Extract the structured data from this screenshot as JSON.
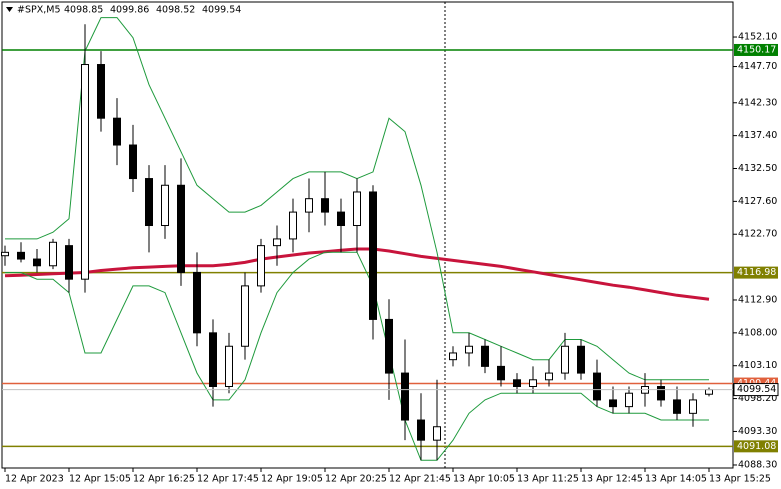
{
  "chart_data": {
    "type": "candlestick",
    "title": "#SPX,M5",
    "open": [
      4119.5,
      4120,
      4119,
      4118,
      4121,
      4116,
      4148,
      4140,
      4136,
      4131,
      4124,
      4130,
      4117,
      4108,
      4100,
      4106,
      4115,
      4121,
      4122,
      4126,
      4128,
      4126,
      4124,
      4129,
      4110,
      4102,
      4095,
      4092,
      4104,
      4105,
      4106,
      4103,
      4101,
      4100,
      4101,
      4102,
      4106,
      4102,
      4098,
      4097,
      4099,
      4100,
      4098,
      4096,
      4098.85
    ],
    "high": [
      4121,
      4121.5,
      4120.5,
      4122,
      4122,
      4154,
      4150,
      4143,
      4139,
      4133,
      4133,
      4134,
      4120,
      4110,
      4108,
      4117,
      4122,
      4124,
      4128,
      4131,
      4132,
      4128,
      4131,
      4130,
      4113,
      4107,
      4099,
      4101,
      4106,
      4108,
      4107,
      4106,
      4102,
      4103,
      4104,
      4108,
      4107,
      4104,
      4100,
      4100,
      4102,
      4101,
      4100,
      4099,
      4099.86
    ],
    "low": [
      4118,
      4118.5,
      4117,
      4117.5,
      4114,
      4114,
      4138,
      4133,
      4129,
      4120,
      4122,
      4115,
      4106,
      4097,
      4099,
      4104,
      4114,
      4118,
      4120,
      4123,
      4124,
      4120,
      4120,
      4107,
      4098,
      4092,
      4089,
      4089,
      4103,
      4103,
      4102,
      4100,
      4099,
      4099,
      4100,
      4101,
      4101,
      4097,
      4096,
      4096,
      4097,
      4097,
      4095,
      4094,
      4098.52
    ],
    "close": [
      4120,
      4119,
      4118,
      4121.5,
      4116,
      4148,
      4140,
      4136,
      4131,
      4124,
      4130,
      4117,
      4108,
      4100,
      4106,
      4115,
      4121,
      4122,
      4126,
      4128,
      4126,
      4124,
      4129,
      4110,
      4102,
      4095,
      4092,
      4094,
      4105,
      4106,
      4103,
      4101,
      4100,
      4101,
      4102,
      4106,
      4102,
      4098,
      4097,
      4099,
      4100,
      4098,
      4096,
      4098,
      4099.54
    ],
    "lines": [
      {
        "color": "#c8143c",
        "values": [
          4116.5,
          4116.6,
          4116.7,
          4116.8,
          4116.9,
          4117,
          4117.3,
          4117.5,
          4117.7,
          4117.8,
          4117.9,
          4118,
          4118,
          4118,
          4118.2,
          4118.5,
          4119,
          4119.3,
          4119.6,
          4119.9,
          4120.1,
          4120.3,
          4120.5,
          4120.5,
          4120.2,
          4119.8,
          4119.4,
          4119.1,
          4118.8,
          4118.5,
          4118.2,
          4117.9,
          4117.5,
          4117.1,
          4116.7,
          4116.3,
          4115.9,
          4115.5,
          4115.1,
          4114.8,
          4114.4,
          4114,
          4113.6,
          4113.3,
          4113
        ]
      },
      {
        "color": "#1e9a3c",
        "values": [
          4122,
          4122,
          4122,
          4123,
          4125,
          4150,
          4155,
          4155,
          4152,
          4145,
          4140,
          4135,
          4130,
          4128,
          4126,
          4126,
          4127,
          4129,
          4131,
          4132,
          4132,
          4132,
          4131,
          4132,
          4140,
          4138,
          4130,
          4120,
          4108,
          4108,
          4107,
          4106,
          4105,
          4104,
          4104,
          4107,
          4107,
          4106,
          4104,
          4102,
          4101,
          4101,
          4101,
          4101,
          4101
        ]
      },
      {
        "color": "#1e9a3c",
        "values": [
          4117,
          4117,
          4116,
          4116,
          4114,
          4105,
          4105,
          4110,
          4115,
          4115,
          4114,
          4108,
          4102,
          4098,
          4098,
          4101,
          4108,
          4114,
          4117,
          4119,
          4120,
          4120,
          4120,
          4115,
          4105,
          4095,
          4089,
          4089,
          4092,
          4096,
          4098,
          4099,
          4099,
          4099,
          4099,
          4099,
          4099,
          4097,
          4096,
          4096,
          4096,
          4095,
          4095,
          4095,
          4095
        ]
      }
    ],
    "hlines": [
      {
        "value": 4150.17,
        "color": "#008000"
      },
      {
        "value": 4116.98,
        "color": "#808000"
      },
      {
        "value": 4100.44,
        "color": "#e0603c"
      },
      {
        "value": 4091.08,
        "color": "#808000"
      }
    ],
    "ylim": [
      4087.85,
      4157.62
    ],
    "yticks": [
      {
        "value": 4152.1,
        "label": "4152.10"
      },
      {
        "value": 4147.7,
        "label": "4147.70"
      },
      {
        "value": 4142.3,
        "label": "4142.30"
      },
      {
        "value": 4137.4,
        "label": "4137.40"
      },
      {
        "value": 4132.5,
        "label": "4132.50"
      },
      {
        "value": 4127.6,
        "label": "4127.60"
      },
      {
        "value": 4122.7,
        "label": "4122.70"
      },
      {
        "value": 4112.9,
        "label": "4112.90"
      },
      {
        "value": 4108.0,
        "label": "4108.00"
      },
      {
        "value": 4103.1,
        "label": "4103.10"
      },
      {
        "value": 4098.2,
        "label": "4098.20"
      },
      {
        "value": 4093.3,
        "label": "4093.30"
      },
      {
        "value": 4088.3,
        "label": "4088.30"
      }
    ],
    "xlim": [
      -0.3125,
      45.5
    ],
    "xticks": [
      {
        "value": 0,
        "label": "12 Apr 2023"
      },
      {
        "value": 4,
        "label": "12 Apr 15:05"
      },
      {
        "value": 8,
        "label": "12 Apr 16:25"
      },
      {
        "value": 12,
        "label": "12 Apr 17:45"
      },
      {
        "value": 16,
        "label": "12 Apr 19:05"
      },
      {
        "value": 20,
        "label": "12 Apr 20:25"
      },
      {
        "value": 24,
        "label": "12 Apr 21:45"
      },
      {
        "value": 28,
        "label": "13 Apr 10:05"
      },
      {
        "value": 32,
        "label": "13 Apr 11:25"
      },
      {
        "value": 36,
        "label": "13 Apr 12:45"
      },
      {
        "value": 40,
        "label": "13 Apr 14:05"
      },
      {
        "value": 44,
        "label": "13 Apr 15:25"
      }
    ]
  }
}
